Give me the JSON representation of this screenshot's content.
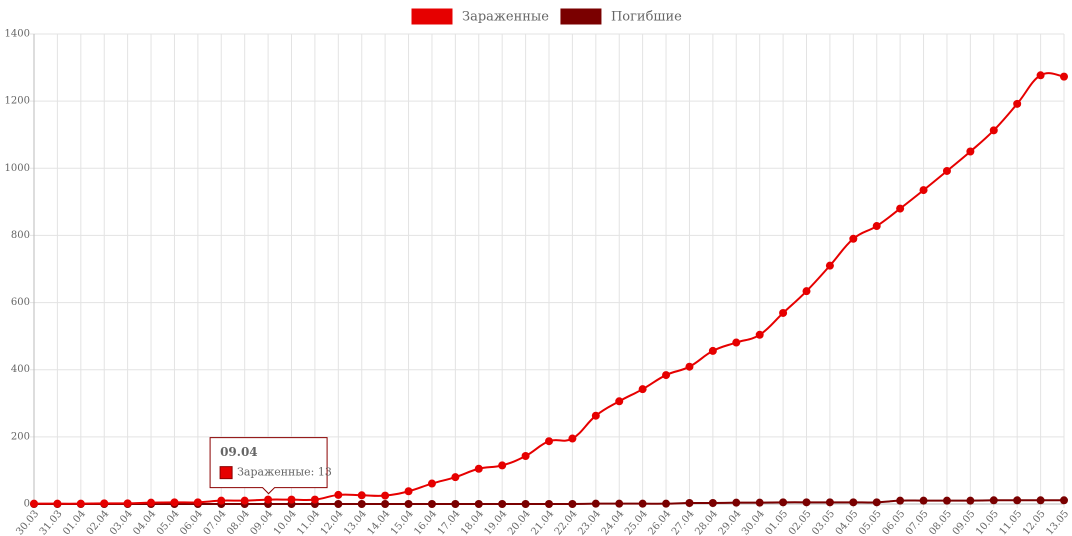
{
  "chart_data": {
    "type": "line",
    "categories": [
      "30.03",
      "31.03",
      "01.04",
      "02.04",
      "03.04",
      "04.04",
      "05.04",
      "06.04",
      "07.04",
      "08.04",
      "09.04",
      "10.04",
      "11.04",
      "12.04",
      "13.04",
      "14.04",
      "15.04",
      "16.04",
      "17.04",
      "18.04",
      "19.04",
      "20.04",
      "21.04",
      "22.04",
      "23.04",
      "24.04",
      "25.04",
      "26.04",
      "27.04",
      "28.04",
      "29.04",
      "30.04",
      "01.05",
      "02.05",
      "03.05",
      "04.05",
      "05.05",
      "06.05",
      "07.05",
      "08.05",
      "09.05",
      "10.05",
      "11.05",
      "12.05",
      "13.05"
    ],
    "series": [
      {
        "name": "Зараженные",
        "color": "#e60000",
        "values": [
          1,
          1,
          1,
          2,
          2,
          4,
          5,
          5,
          10,
          10,
          13,
          13,
          13,
          27,
          26,
          25,
          38,
          61,
          80,
          105,
          115,
          143,
          187,
          195,
          263,
          306,
          342,
          384,
          409,
          456,
          481,
          504,
          569,
          634,
          710,
          790,
          828,
          880,
          935,
          992,
          1050,
          1113,
          1192,
          1277,
          1273
        ]
      },
      {
        "name": "Погибшие",
        "color": "#7a0000",
        "values": [
          0,
          0,
          0,
          0,
          0,
          0,
          0,
          0,
          0,
          0,
          0,
          0,
          0,
          0,
          0,
          0,
          0,
          0,
          0,
          0,
          0,
          0,
          0,
          0,
          1,
          1,
          1,
          1,
          3,
          3,
          4,
          4,
          5,
          5,
          5,
          5,
          5,
          10,
          10,
          10,
          10,
          11,
          11,
          11,
          11
        ]
      }
    ],
    "ylim": [
      0,
      1400
    ],
    "yticks": [
      0,
      200,
      400,
      600,
      800,
      1000,
      1200,
      1400
    ],
    "grid": true,
    "legend": "top",
    "tooltip": {
      "title": "09.04",
      "text": "Зараженные: 13",
      "series": 0,
      "index": 10
    }
  }
}
